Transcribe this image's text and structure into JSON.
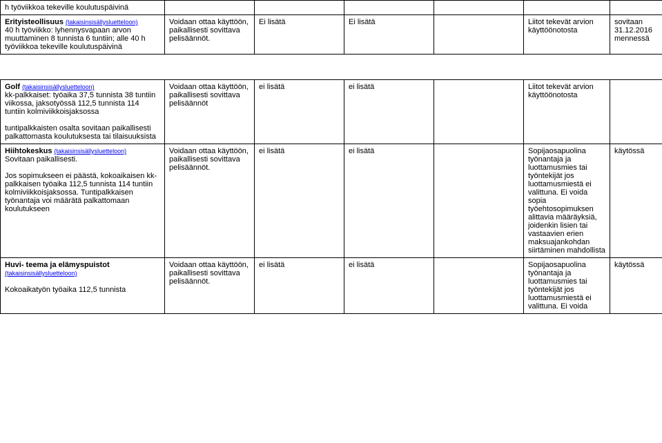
{
  "table": {
    "rows": [
      {
        "c1_parts": [
          {
            "text": "h työviikkoa tekeville koulutuspäivinä",
            "bold": false,
            "link": false
          }
        ],
        "c2": "",
        "c3": "",
        "c4": "",
        "c5": "",
        "c6": "",
        "c7": ""
      },
      {
        "c1_parts": [
          {
            "text": "Erityisteollisuus ",
            "bold": true,
            "link": false
          },
          {
            "text": "(takaisinsisällysluetteloon)",
            "bold": false,
            "link": true
          },
          {
            "text": "\n40 h työviikko: lyhennysvapaan arvon muuttaminen 8 tunnista 6 tuntiin; alle 40 h työviikkoa tekeville koulutuspäivinä",
            "bold": false,
            "link": false
          }
        ],
        "c2": "Voidaan ottaa käyttöön, paikallisesti sovittava pelisäännöt.",
        "c3": "Ei lisätä",
        "c4": "Ei lisätä",
        "c5": "",
        "c6": "Liitot tekevät arvion käyttöönotosta",
        "c7": "sovitaan 31.12.2016 mennessä"
      },
      {
        "spacer": true
      },
      {
        "c1_parts": [
          {
            "text": "Golf ",
            "bold": true,
            "link": false
          },
          {
            "text": "(takaisinsisällysluetteloon)",
            "bold": false,
            "link": true
          },
          {
            "text": "\nkk-palkkaiset: työaika 37,5 tunnista 38 tuntiin viikossa, jaksotyössä 112,5 tunnista 114 tuntiin kolmiviikkoisjaksossa\n\ntuntipalkkaisten osalta sovitaan paikallisesti palkattomasta koulutuksesta tai tilaisuuksista",
            "bold": false,
            "link": false
          }
        ],
        "c2": "Voidaan ottaa käyttöön, paikallisesti sovittava pelisäännöt",
        "c3": "ei lisätä",
        "c4": "ei lisätä",
        "c5": "",
        "c6": "Liitot tekevät arvion käyttöönotosta",
        "c7": ""
      },
      {
        "c1_parts": [
          {
            "text": "Hiihtokeskus ",
            "bold": true,
            "link": false
          },
          {
            "text": "(takaisinsisällysluetteloon)",
            "bold": false,
            "link": true
          },
          {
            "text": "\nSovitaan paikallisesti.\n\nJos sopimukseen ei päästä, kokoaikaisen kk-palkkaisen työaika 112,5 tunnista 114 tuntiin kolmiviikkoisjaksossa. Tuntipalkkaisen työnantaja voi määrätä palkattomaan koulutukseen",
            "bold": false,
            "link": false
          }
        ],
        "c2": "Voidaan ottaa käyttöön, paikallisesti sovittava pelisäännöt.",
        "c3": "ei lisätä",
        "c4": "ei lisätä",
        "c5": "",
        "c6": "Sopijaosapuolina työnantaja ja luottamusmies tai työntekijät jos luottamusmiestä ei valittuna. Ei voida sopia työehtosopimuksen alittavia määräyksiä, joidenkin lisien tai vastaavien erien maksuajankohdan siirtäminen mahdollista",
        "c7": "käytössä"
      },
      {
        "c1_parts": [
          {
            "text": "Huvi- teema ja elämyspuistot",
            "bold": true,
            "link": false
          },
          {
            "text": "\n",
            "bold": false,
            "link": false
          },
          {
            "text": "(takaisinsisällysluetteloon)",
            "bold": false,
            "link": true
          },
          {
            "text": "\n\nKokoaikatyön työaika 112,5 tunnista",
            "bold": false,
            "link": false
          }
        ],
        "c2": "Voidaan ottaa käyttöön, paikallisesti sovittava pelisäännöt.",
        "c3": "ei lisätä",
        "c4": "ei lisätä",
        "c5": "",
        "c6": "Sopijaosapuolina työnantaja ja luottamusmies tai työntekijät jos luottamusmiestä ei valittuna. Ei voida",
        "c7": "käytössä"
      }
    ]
  }
}
